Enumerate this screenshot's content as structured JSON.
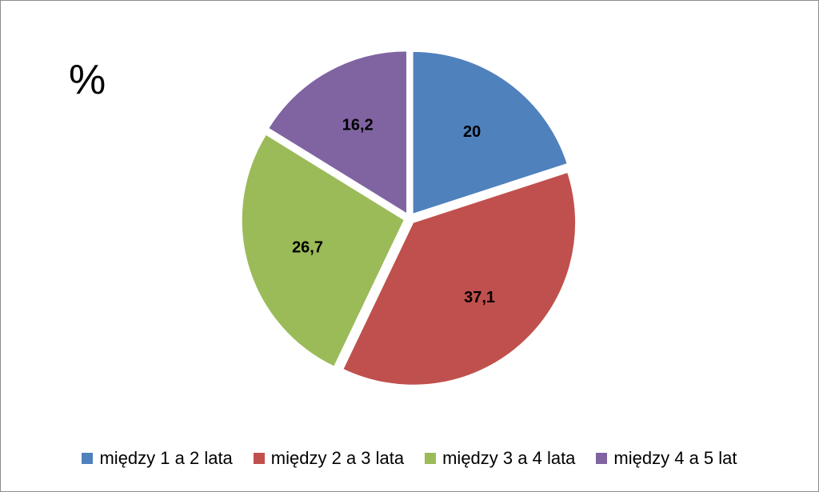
{
  "chart_data": {
    "type": "pie",
    "title": "",
    "unit_label": "%",
    "categories": [
      "między 1 a 2 lata",
      "między 2 a 3 lata",
      "między 3 a 4 lata",
      "między 4 a 5 lat"
    ],
    "values": [
      20,
      37.1,
      26.7,
      16.2
    ],
    "data_labels": [
      "20",
      "37,1",
      "26,7",
      "16,2"
    ],
    "colors": [
      "#4f81bd",
      "#c0504d",
      "#9bbb59",
      "#8064a2"
    ],
    "legend_position": "bottom",
    "exploded": true
  }
}
